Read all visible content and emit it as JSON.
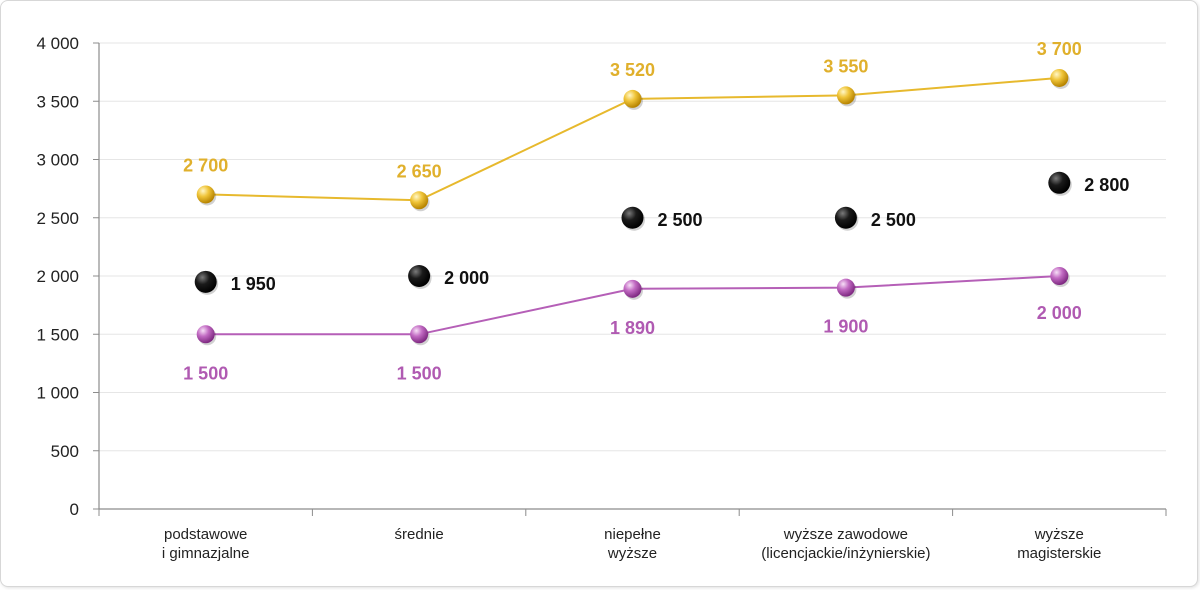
{
  "chart_data": {
    "type": "line",
    "categories": [
      [
        "podstawowe",
        "i gimnazjalne"
      ],
      [
        "średnie"
      ],
      [
        "niepełne",
        "wyższe"
      ],
      [
        "wyższe zawodowe",
        "(licencjackie/inżynierskie)"
      ],
      [
        "wyższe",
        "magisterskie"
      ]
    ],
    "y_ticks": [
      "0",
      "500",
      "1 000",
      "1 500",
      "2 000",
      "2 500",
      "3 000",
      "3 500",
      "4 000"
    ],
    "ylim": [
      0,
      4000
    ],
    "grid": true,
    "legend": "none",
    "series": [
      {
        "key": "gold",
        "values": [
          2700,
          2650,
          3520,
          3550,
          3700
        ],
        "labels": [
          "2 700",
          "2 650",
          "3 520",
          "3 550",
          "3 700"
        ],
        "color": "#e7b92d",
        "line": true
      },
      {
        "key": "black",
        "values": [
          1950,
          2000,
          2500,
          2500,
          2800
        ],
        "labels": [
          "1 950",
          "2 000",
          "2 500",
          "2 500",
          "2 800"
        ],
        "color": "#111111",
        "line": false
      },
      {
        "key": "purple",
        "values": [
          1500,
          1500,
          1890,
          1900,
          2000
        ],
        "labels": [
          "1 500",
          "1 500",
          "1 890",
          "1 900",
          "2 000"
        ],
        "color": "#b55fb7",
        "line": true
      }
    ]
  }
}
